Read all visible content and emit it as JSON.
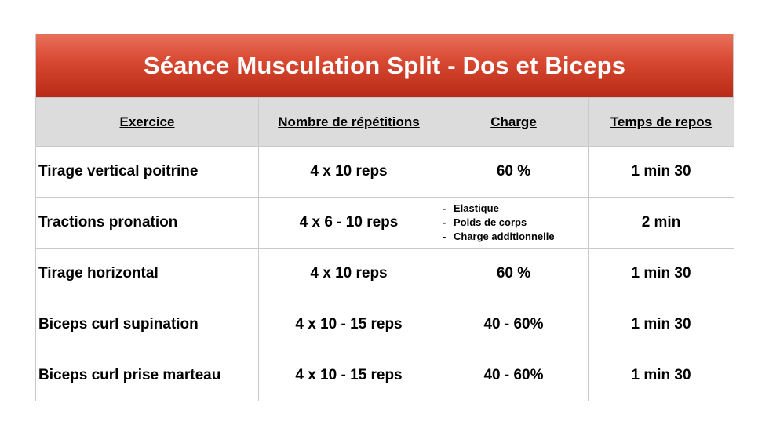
{
  "title": "Séance Musculation Split - Dos et Biceps",
  "headers": [
    "Exercice",
    "Nombre de répétitions",
    "Charge",
    "Temps de repos"
  ],
  "rows": [
    {
      "exercise": "Tirage vertical poitrine",
      "reps": "4 x 10 reps",
      "charge": "60 %",
      "rest": "1 min 30"
    },
    {
      "exercise": "Tractions pronation",
      "reps": "4 x 6 - 10 reps",
      "charge_list": [
        "Elastique",
        "Poids de corps",
        "Charge additionnelle"
      ],
      "rest": "2 min"
    },
    {
      "exercise": "Tirage horizontal",
      "reps": "4 x 10 reps",
      "charge": "60 %",
      "rest": "1 min 30"
    },
    {
      "exercise": "Biceps curl supination",
      "reps": "4 x 10 - 15 reps",
      "charge": "40 - 60%",
      "rest": "1 min 30"
    },
    {
      "exercise": "Biceps curl prise marteau",
      "reps": "4 x 10 - 15 reps",
      "charge": "40 - 60%",
      "rest": "1 min 30"
    }
  ]
}
